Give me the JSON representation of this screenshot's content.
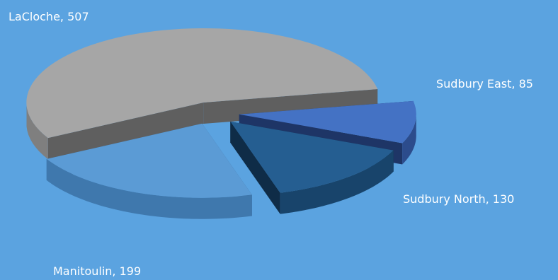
{
  "chart_data": {
    "type": "pie",
    "title": "",
    "style": "3d-exploded",
    "background_color": "#5ba3e0",
    "label_color": "#ffffff",
    "slices": [
      {
        "category": "LaCloche",
        "value": 507,
        "label": "LaCloche, 507",
        "top_color": "#a6a6a6",
        "side_color": "#7f7f7f",
        "inner_color": "#5f5f5f"
      },
      {
        "category": "Sudbury East",
        "value": 85,
        "label": "Sudbury East, 85",
        "top_color": "#4472c4",
        "side_color": "#2c4c8c",
        "inner_color": "#1e3566"
      },
      {
        "category": "Sudbury North",
        "value": 130,
        "label": "Sudbury North, 130",
        "top_color": "#255e91",
        "side_color": "#18446b",
        "inner_color": "#0f2c47"
      },
      {
        "category": "Manitoulin",
        "value": 199,
        "label": "Manitoulin, 199",
        "top_color": "#5b9bd5",
        "side_color": "#3f78ad",
        "inner_color": "#2f5f8c"
      }
    ]
  }
}
